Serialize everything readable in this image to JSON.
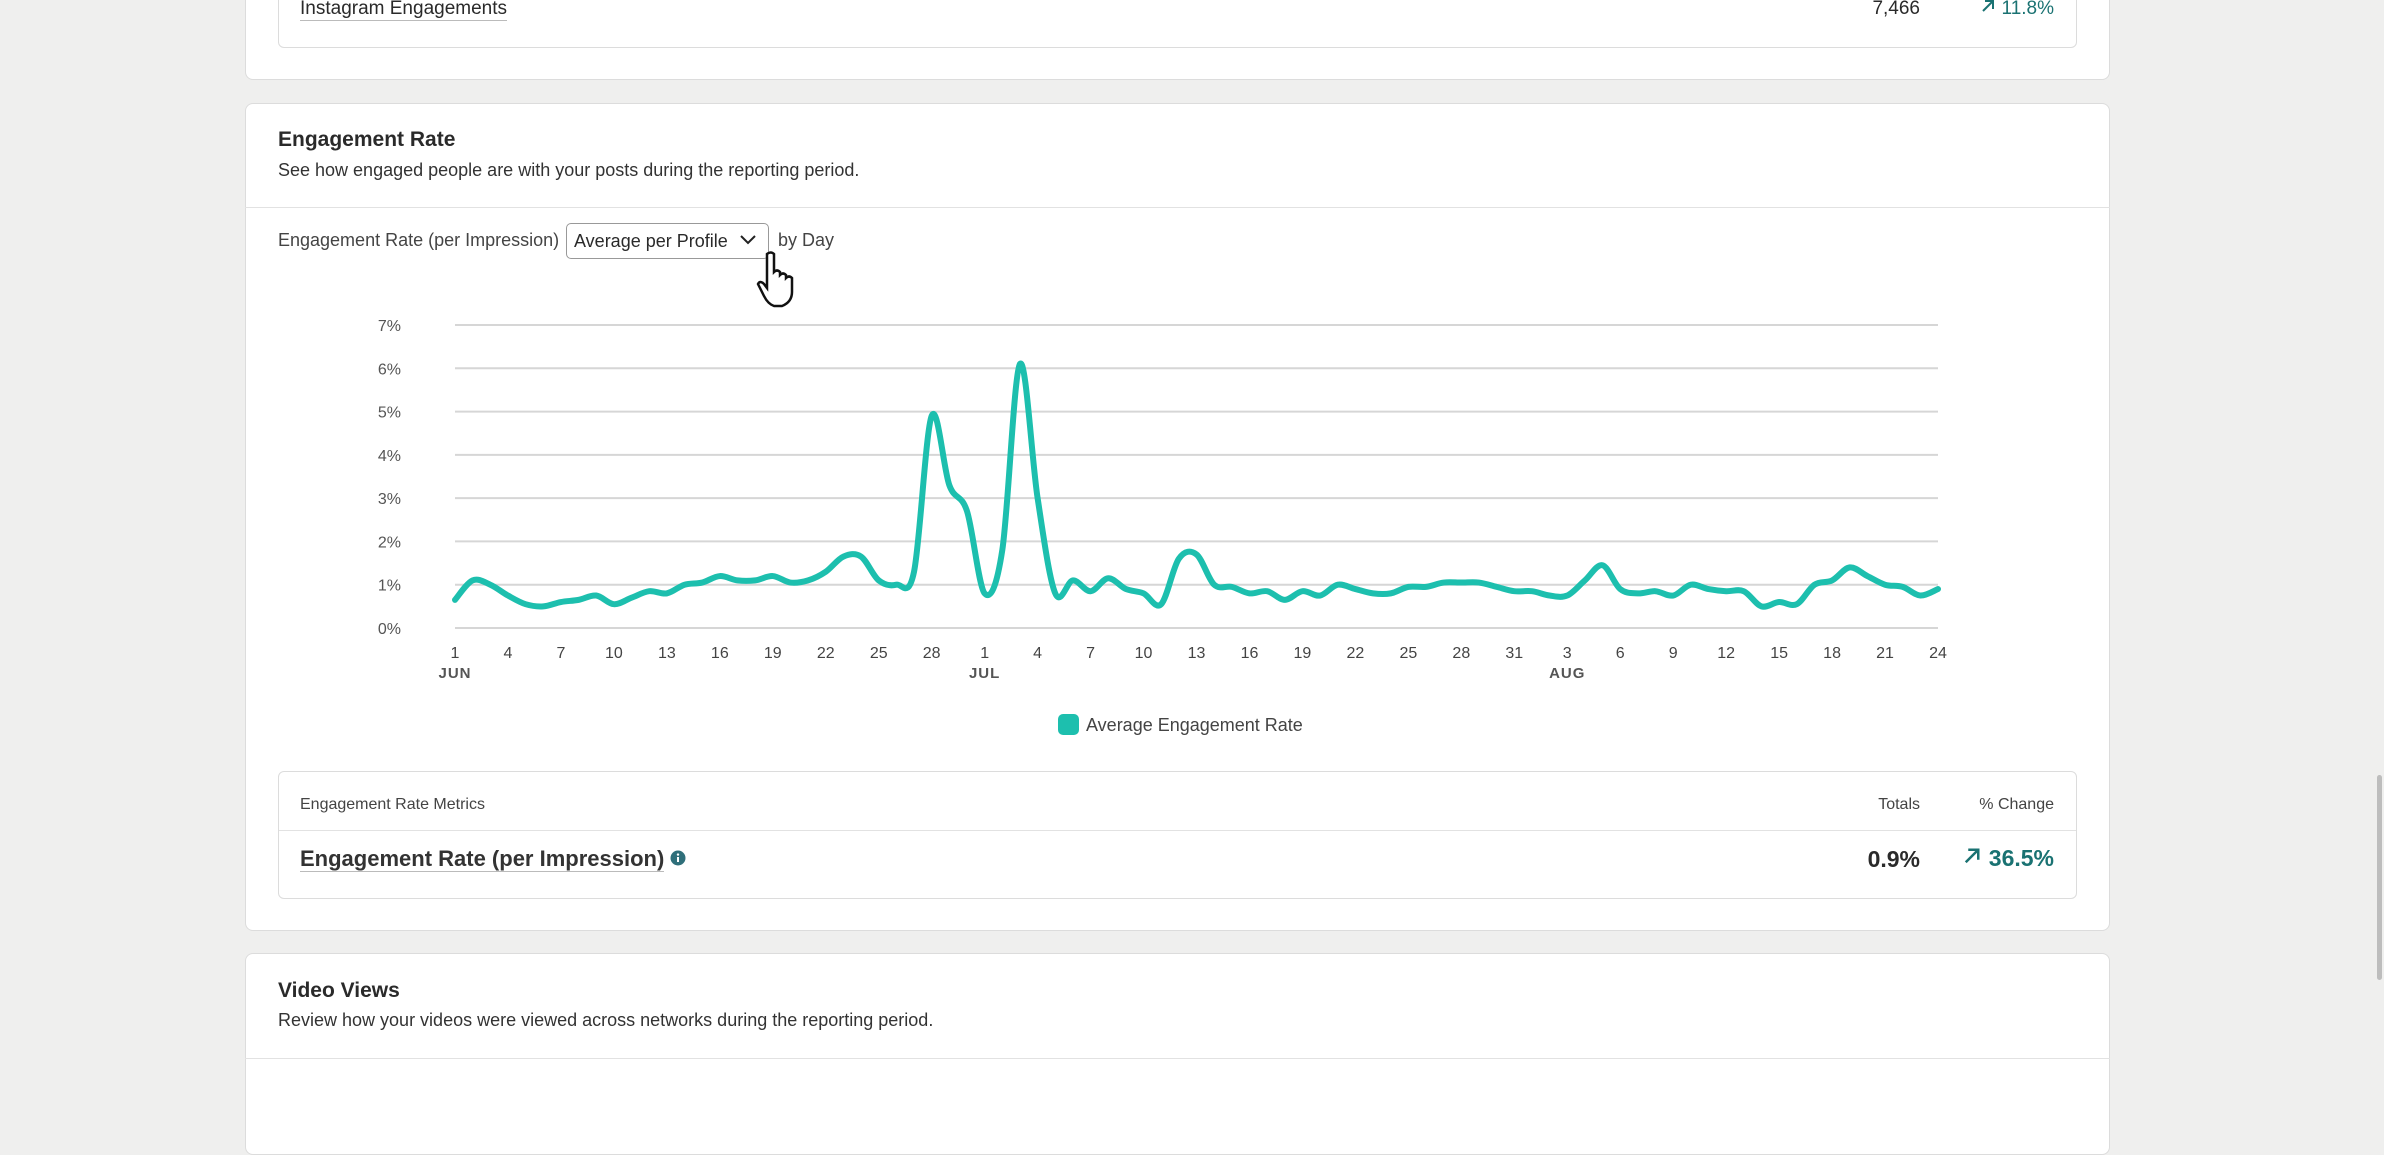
{
  "top_table": {
    "label": "Instagram Engagements",
    "total": "7,466",
    "change": "11.8%"
  },
  "engagement_card": {
    "title": "Engagement Rate",
    "subtitle": "See how engaged people are with your posts during the reporting period.",
    "control_label": "Engagement Rate (per Impression)",
    "dropdown": "Average per Profile",
    "suffix": "by Day"
  },
  "chart_data": {
    "type": "line",
    "categories": [
      "1",
      null,
      null,
      "4",
      null,
      null,
      "7",
      null,
      null,
      "10",
      null,
      null,
      "13",
      null,
      null,
      "16",
      null,
      null,
      "19",
      null,
      null,
      "22",
      null,
      null,
      "25",
      null,
      null,
      "28",
      null,
      null,
      "1",
      null,
      null,
      "4",
      null,
      null,
      "7",
      null,
      null,
      "10",
      null,
      null,
      "13",
      null,
      null,
      "16",
      null,
      null,
      "19",
      null,
      null,
      "22",
      null,
      null,
      "25",
      null,
      null,
      "28",
      null,
      null,
      "31",
      null,
      null,
      "3",
      null,
      null,
      "6",
      null,
      null,
      "9",
      null,
      null,
      "12",
      null,
      null,
      "15",
      null,
      null,
      "18",
      null,
      null,
      "21",
      null,
      null,
      "24"
    ],
    "months": [
      "JUN",
      null,
      null,
      null,
      null,
      null,
      null,
      null,
      null,
      null,
      null,
      null,
      null,
      null,
      null,
      null,
      null,
      null,
      null,
      null,
      null,
      null,
      null,
      null,
      null,
      null,
      null,
      null,
      null,
      null,
      "JUL",
      null,
      null,
      null,
      null,
      null,
      null,
      null,
      null,
      null,
      null,
      null,
      null,
      null,
      null,
      null,
      null,
      null,
      null,
      null,
      null,
      null,
      null,
      null,
      null,
      null,
      null,
      null,
      null,
      null,
      null,
      null,
      null,
      "AUG",
      null,
      null,
      null,
      null,
      null,
      null,
      null,
      null,
      null,
      null,
      null,
      null,
      null,
      null,
      null,
      null,
      null,
      null,
      null,
      null,
      null
    ],
    "series": [
      {
        "name": "Average Engagement Rate",
        "color": "#1dbfae",
        "values": [
          0.65,
          1.1,
          1.0,
          0.75,
          0.55,
          0.5,
          0.6,
          0.65,
          0.75,
          0.55,
          0.7,
          0.85,
          0.8,
          1.0,
          1.05,
          1.2,
          1.1,
          1.1,
          1.2,
          1.05,
          1.1,
          1.3,
          1.65,
          1.65,
          1.1,
          1.0,
          1.3,
          4.9,
          3.3,
          2.7,
          0.8,
          1.8,
          6.1,
          3.0,
          0.8,
          1.1,
          0.85,
          1.15,
          0.9,
          0.8,
          0.55,
          1.6,
          1.7,
          1.0,
          0.95,
          0.8,
          0.85,
          0.65,
          0.85,
          0.75,
          1.0,
          0.9,
          0.8,
          0.8,
          0.95,
          0.95,
          1.05,
          1.05,
          1.05,
          0.95,
          0.85,
          0.85,
          0.75,
          0.75,
          1.1,
          1.45,
          0.9,
          0.8,
          0.85,
          0.75,
          1.0,
          0.9,
          0.85,
          0.85,
          0.5,
          0.6,
          0.55,
          1.0,
          1.1,
          1.4,
          1.2,
          1.0,
          0.95,
          0.75,
          0.9
        ]
      }
    ],
    "ylim": [
      0,
      7
    ],
    "yticks": [
      {
        "value": 0,
        "label": "0%"
      },
      {
        "value": 1,
        "label": "1%"
      },
      {
        "value": 2,
        "label": "2%"
      },
      {
        "value": 3,
        "label": "3%"
      },
      {
        "value": 4,
        "label": "4%"
      },
      {
        "value": 5,
        "label": "5%"
      },
      {
        "value": 6,
        "label": "6%"
      },
      {
        "value": 7,
        "label": "7%"
      }
    ],
    "grid": true
  },
  "metrics": {
    "header": "Engagement Rate Metrics",
    "totals_label": "Totals",
    "change_label": "% Change",
    "label": "Engagement Rate (per Impression)",
    "total": "0.9%",
    "change": "36.5%"
  },
  "video_card": {
    "title": "Video Views",
    "subtitle": "Review how your videos were viewed across networks during the reporting period."
  }
}
